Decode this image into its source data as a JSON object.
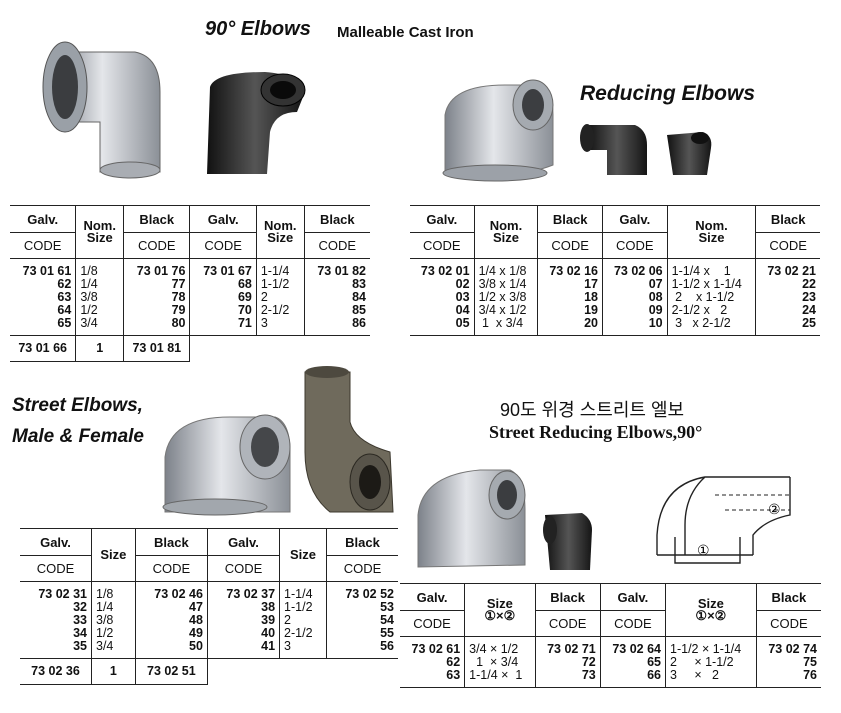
{
  "header": {
    "title": "90° Elbows",
    "subtitle": "Malleable Cast Iron"
  },
  "reducing": {
    "title": "Reducing Elbows"
  },
  "street": {
    "title_line1": "Street Elbows,",
    "title_line2": "Male & Female"
  },
  "street_reducing": {
    "title_korean": "90도 위경 스트리트 엘보",
    "title": "Street Reducing Elbows,90°",
    "diagram_label_1": "①",
    "diagram_label_2": "②"
  },
  "colors": {
    "galvanized": "#b8bcc2",
    "black": "#2a2a2a",
    "rule": "#222222"
  },
  "tables": [
    {
      "id": "elbows-90",
      "headers": {
        "galv": "Galv.",
        "black": "Black",
        "code": "CODE",
        "size": "Nom.\nSize"
      },
      "rows": [
        [
          "73 01 61",
          "1/8",
          "73 01 76",
          "73 01 67",
          "1-1/4",
          "73 01 82"
        ],
        [
          "62",
          "1/4",
          "77",
          "68",
          "1-1/2",
          "83"
        ],
        [
          "63",
          "3/8",
          "78",
          "69",
          "2",
          "84"
        ],
        [
          "64",
          "1/2",
          "79",
          "70",
          "2-1/2",
          "85"
        ],
        [
          "65",
          "3/4",
          "80",
          "71",
          "3",
          "86"
        ]
      ],
      "extra": [
        "73 01 66",
        "1",
        "73 01 81"
      ]
    },
    {
      "id": "reducing-elbows",
      "headers": {
        "galv": "Galv.",
        "black": "Black",
        "code": "CODE",
        "size": "Nom.\nSize"
      },
      "rows": [
        [
          "73 02 01",
          "1/4 x 1/8",
          "73 02 16",
          "73 02 06",
          "1-1/4 x    1",
          "73 02 21"
        ],
        [
          "02",
          "3/8 x 1/4",
          "17",
          "07",
          "1-1/2 x 1-1/4",
          "22"
        ],
        [
          "03",
          "1/2 x 3/8",
          "18",
          "08",
          " 2    x 1-1/2",
          "23"
        ],
        [
          "04",
          "3/4 x 1/2",
          "19",
          "09",
          "2-1/2 x   2",
          "24"
        ],
        [
          "05",
          " 1  x 3/4",
          "20",
          "10",
          " 3   x 2-1/2",
          "25"
        ]
      ]
    },
    {
      "id": "street-elbows",
      "headers": {
        "galv": "Galv.",
        "black": "Black",
        "code": "CODE",
        "size": "Size"
      },
      "rows": [
        [
          "73 02 31",
          "1/8",
          "73 02 46",
          "73 02 37",
          "1-1/4",
          "73 02 52"
        ],
        [
          "32",
          "1/4",
          "47",
          "38",
          "1-1/2",
          "53"
        ],
        [
          "33",
          "3/8",
          "48",
          "39",
          "2",
          "54"
        ],
        [
          "34",
          "1/2",
          "49",
          "40",
          "2-1/2",
          "55"
        ],
        [
          "35",
          "3/4",
          "50",
          "41",
          "3",
          "56"
        ]
      ],
      "extra": [
        "73 02 36",
        "1",
        "73 02 51"
      ]
    },
    {
      "id": "street-reducing-elbows",
      "headers": {
        "galv": "Galv.",
        "black": "Black",
        "code": "CODE",
        "size": "Size\n①×②"
      },
      "rows": [
        [
          "73 02 61",
          "3/4 × 1/2",
          "73 02 71",
          "73 02 64",
          "1-1/2 × 1-1/4",
          "73 02 74"
        ],
        [
          "62",
          "  1  × 3/4",
          "72",
          "65",
          "2     × 1-1/2",
          "75"
        ],
        [
          "63",
          "1-1/4 ×  1",
          "73",
          "66",
          "3     ×   2",
          "76"
        ]
      ]
    }
  ]
}
